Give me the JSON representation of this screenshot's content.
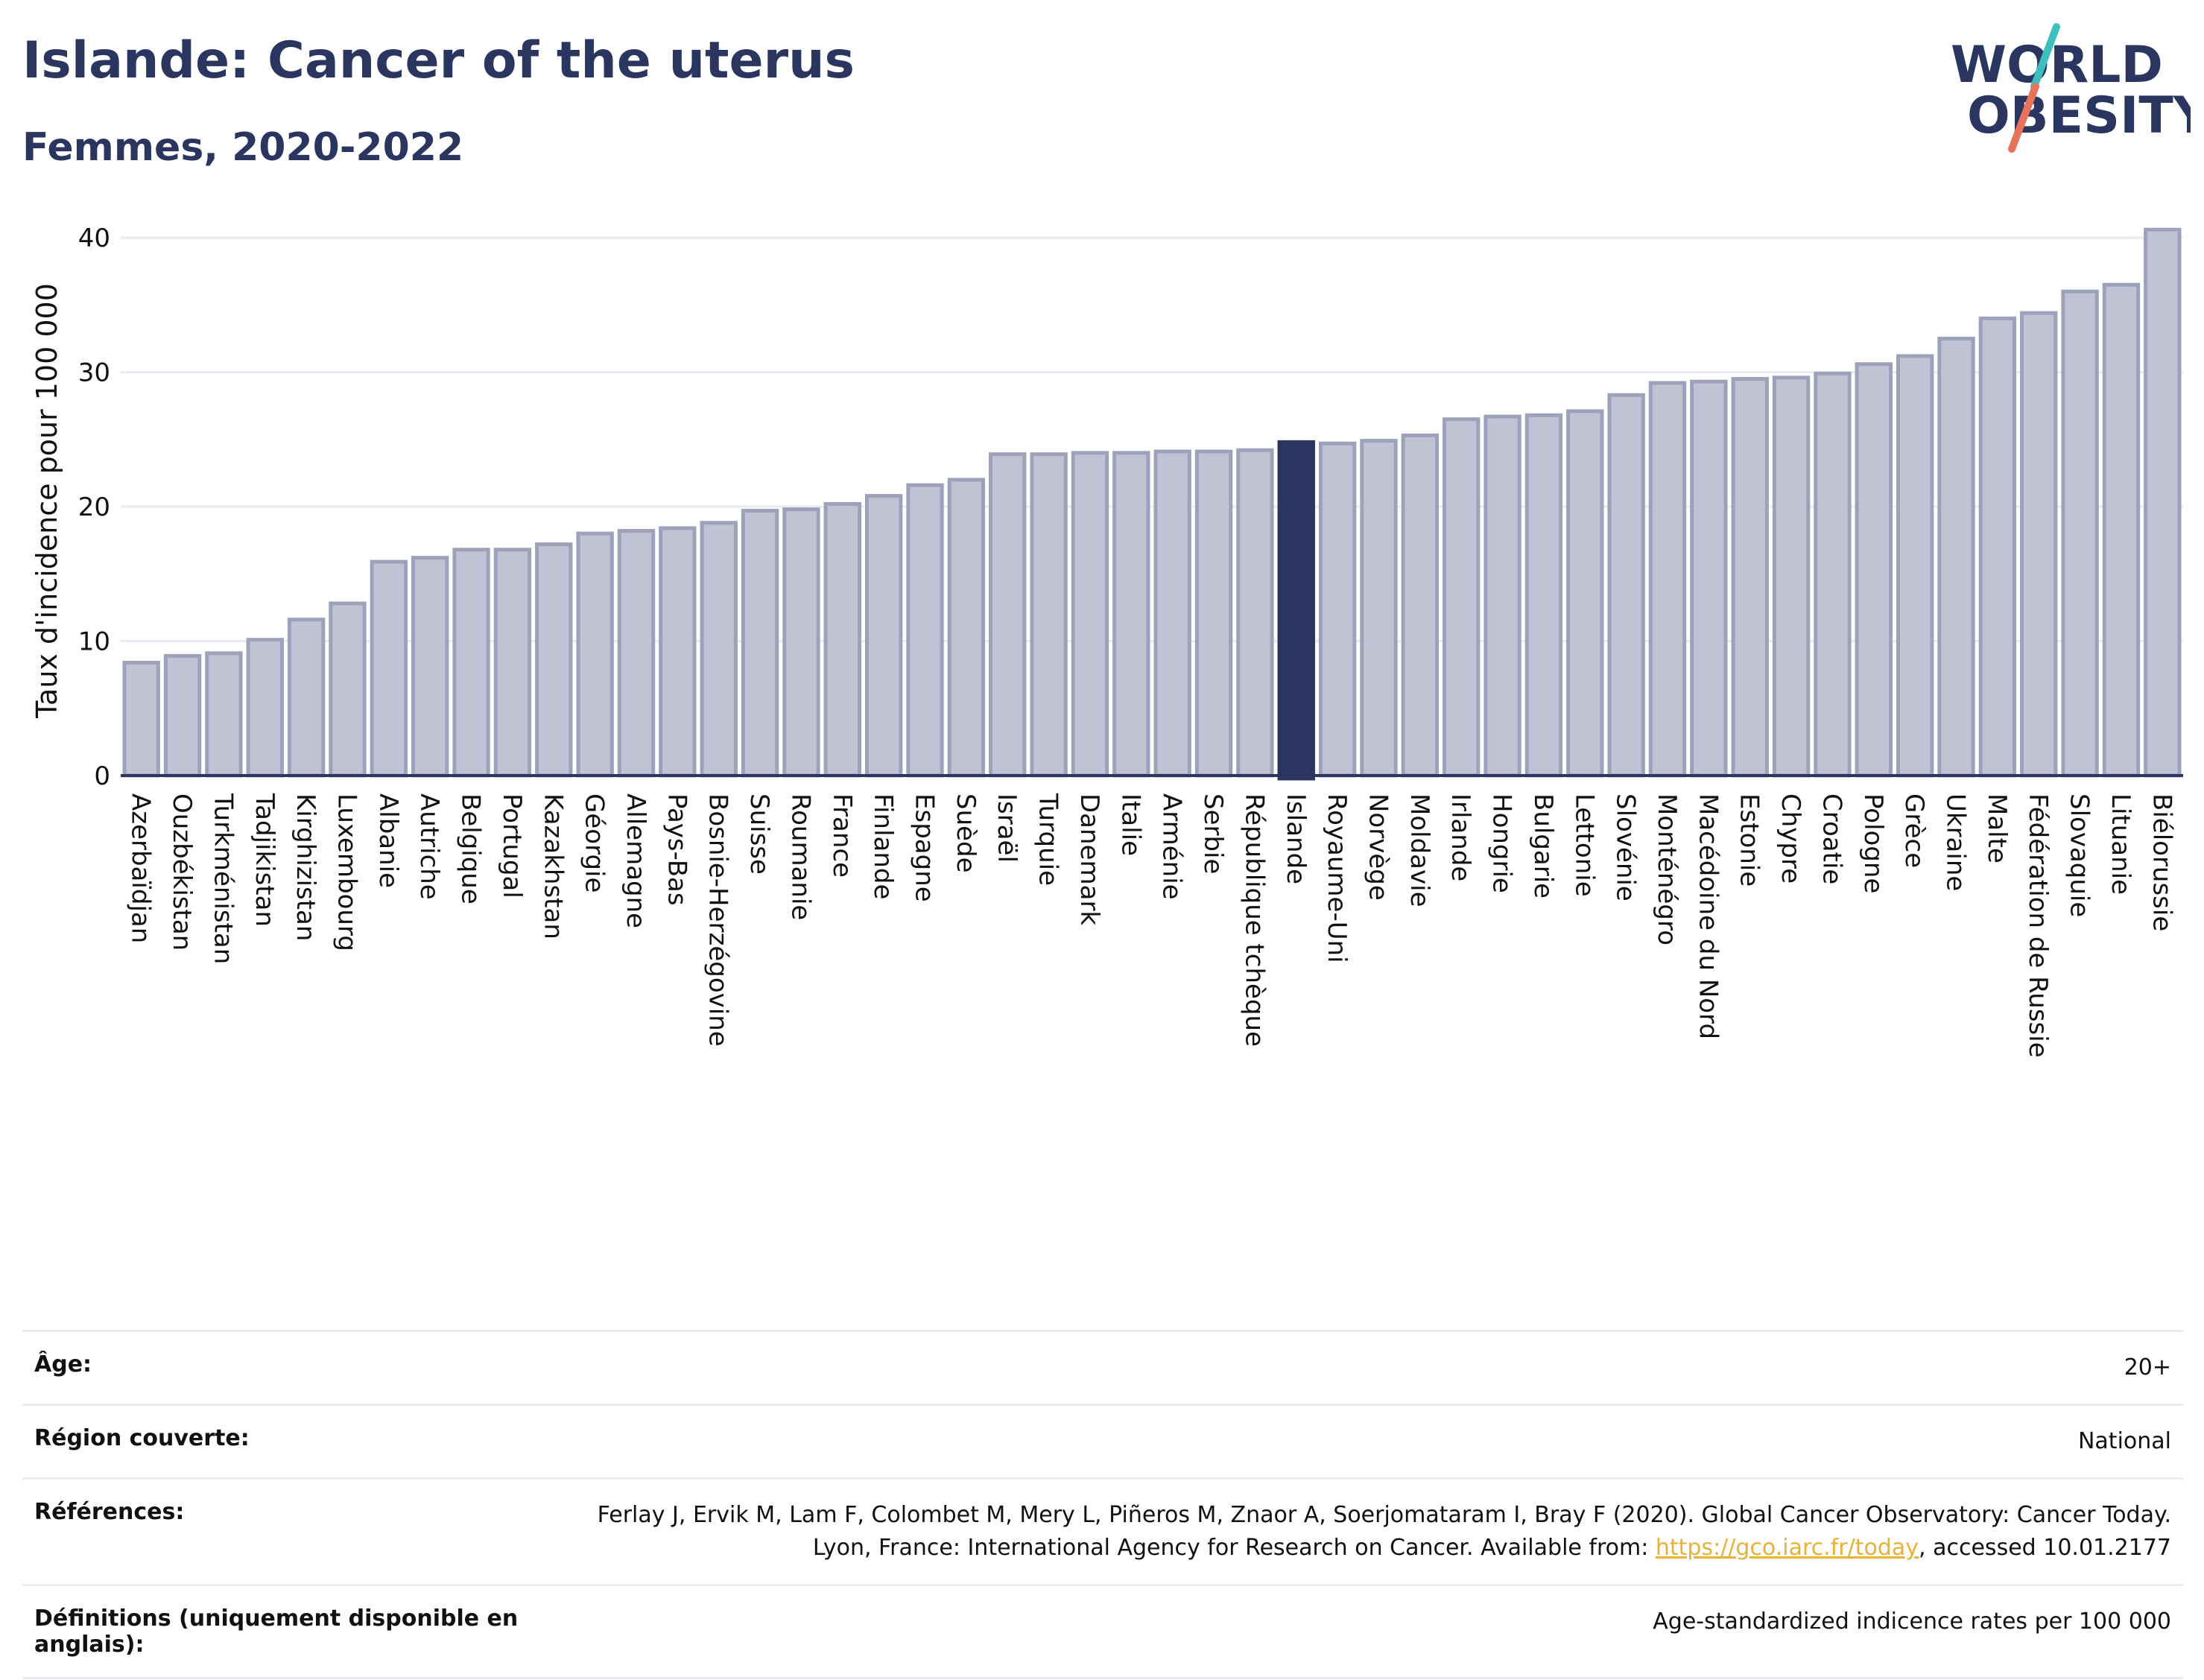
{
  "header": {
    "title": "Islande: Cancer of the uterus",
    "subtitle": "Femmes, 2020-2022"
  },
  "logo": {
    "line1": "WORLD",
    "line2": "OBESITY"
  },
  "colors": {
    "bar": "#bfc3d3",
    "bar_edge": "#9da2ba",
    "highlight": "#2a3560",
    "grid": "#e6ecf2",
    "axis": "#2a3560"
  },
  "chart_data": {
    "type": "bar",
    "ylabel": "Taux d'incidence pour 100 000",
    "ylim": [
      0,
      42
    ],
    "yticks": [
      0,
      10,
      20,
      30,
      40
    ],
    "highlight": "Islande",
    "categories": [
      "Azerbaïdjan",
      "Ouzbékistan",
      "Turkménistan",
      "Tadjikistan",
      "Kirghizistan",
      "Luxembourg",
      "Albanie",
      "Autriche",
      "Belgique",
      "Portugal",
      "Kazakhstan",
      "Géorgie",
      "Allemagne",
      "Pays-Bas",
      "Bosnie-Herzégovine",
      "Suisse",
      "Roumanie",
      "France",
      "Finlande",
      "Espagne",
      "Suède",
      "Israël",
      "Turquie",
      "Danemark",
      "Italie",
      "Arménie",
      "Serbie",
      "République tchèque",
      "Islande",
      "Royaume-Uni",
      "Norvège",
      "Moldavie",
      "Irlande",
      "Hongrie",
      "Bulgarie",
      "Lettonie",
      "Slovénie",
      "Monténégro",
      "Macédoine du Nord",
      "Estonie",
      "Chypre",
      "Croatie",
      "Pologne",
      "Grèce",
      "Ukraine",
      "Malte",
      "Fédération de Russie",
      "Slovaquie",
      "Lituanie",
      "Biélorussie"
    ],
    "values": [
      8.4,
      8.9,
      9.1,
      10.1,
      11.6,
      12.8,
      15.9,
      16.2,
      16.8,
      16.8,
      17.2,
      18.0,
      18.2,
      18.4,
      18.8,
      19.7,
      19.8,
      20.2,
      20.8,
      21.6,
      22.0,
      23.9,
      23.9,
      24.0,
      24.0,
      24.1,
      24.1,
      24.2,
      24.8,
      24.7,
      24.9,
      25.3,
      26.5,
      26.7,
      26.8,
      27.1,
      28.3,
      29.2,
      29.3,
      29.5,
      29.6,
      29.9,
      30.6,
      31.2,
      32.5,
      34.0,
      34.4,
      36.0,
      36.5,
      40.6
    ]
  },
  "meta": [
    {
      "key": "Âge:",
      "value": "20+"
    },
    {
      "key": "Région couverte:",
      "value": "National"
    },
    {
      "key": "Références:",
      "value": "Ferlay J, Ervik M, Lam F, Colombet M, Mery L, Piñeros M, Znaor A, Soerjomataram I, Bray F (2020). Global Cancer Observatory: Cancer Today. Lyon, France: International Agency for Research on Cancer. Available from: ",
      "link": "https://gco.iarc.fr/today",
      "value_after": ", accessed 10.01.2177"
    },
    {
      "key": "Définitions (uniquement disponible en anglais):",
      "value": "Age-standardized indicence rates per 100 000"
    }
  ]
}
